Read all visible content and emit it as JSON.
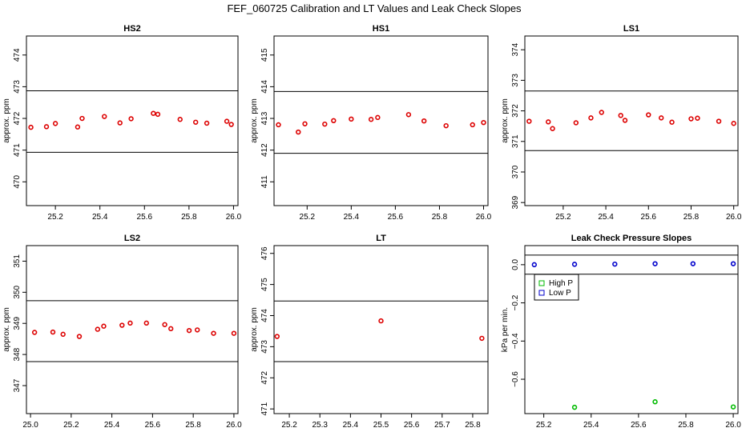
{
  "figure": {
    "title": "FEF_060725  Calibration and LT Values and Leak Check Slopes"
  },
  "chart_data": [
    {
      "id": "hs2",
      "type": "scatter",
      "title": "HS2",
      "ylabel": "approx. ppm",
      "xlim": [
        25.07,
        26.02
      ],
      "ylim": [
        469.25,
        474.6
      ],
      "xticks": [
        25.2,
        25.4,
        25.6,
        25.8,
        26.0
      ],
      "xtick_labels": [
        "25.2",
        "25.4",
        "25.6",
        "25.8",
        "26.0"
      ],
      "yticks": [
        470,
        471,
        472,
        473,
        474
      ],
      "ytick_labels": [
        "470",
        "471",
        "472",
        "473",
        "474"
      ],
      "hlines": [
        472.87,
        470.93
      ],
      "series": [
        {
          "marker": "circle",
          "color": "#dd0000",
          "x": [
            25.09,
            25.16,
            25.2,
            25.3,
            25.32,
            25.42,
            25.49,
            25.54,
            25.64,
            25.66,
            25.76,
            25.83,
            25.88,
            25.97,
            25.99
          ],
          "y": [
            471.72,
            471.74,
            471.84,
            471.73,
            472.0,
            472.06,
            471.86,
            471.99,
            472.16,
            472.13,
            471.97,
            471.88,
            471.85,
            471.91,
            471.81
          ]
        }
      ]
    },
    {
      "id": "hs1",
      "type": "scatter",
      "title": "HS1",
      "ylabel": "approx. ppm",
      "xlim": [
        25.05,
        26.02
      ],
      "ylim": [
        410.25,
        415.6
      ],
      "xticks": [
        25.2,
        25.4,
        25.6,
        25.8,
        26.0
      ],
      "xtick_labels": [
        "25.2",
        "25.4",
        "25.6",
        "25.8",
        "26.0"
      ],
      "yticks": [
        411,
        412,
        413,
        414,
        415
      ],
      "ytick_labels": [
        "411",
        "412",
        "413",
        "414",
        "415"
      ],
      "hlines": [
        413.85,
        411.9
      ],
      "series": [
        {
          "marker": "circle",
          "color": "#dd0000",
          "x": [
            25.07,
            25.16,
            25.19,
            25.28,
            25.32,
            25.4,
            25.49,
            25.52,
            25.66,
            25.73,
            25.83,
            25.95,
            26.0
          ],
          "y": [
            412.8,
            412.57,
            412.83,
            412.82,
            412.93,
            412.98,
            412.97,
            413.03,
            413.12,
            412.92,
            412.77,
            412.8,
            412.87
          ]
        }
      ]
    },
    {
      "id": "ls1",
      "type": "scatter",
      "title": "LS1",
      "ylabel": "approx. ppm",
      "xlim": [
        25.02,
        26.02
      ],
      "ylim": [
        368.9,
        374.45
      ],
      "xticks": [
        25.2,
        25.4,
        25.6,
        25.8,
        26.0
      ],
      "xtick_labels": [
        "25.2",
        "25.4",
        "25.6",
        "25.8",
        "26.0"
      ],
      "yticks": [
        369,
        370,
        371,
        372,
        373,
        374
      ],
      "ytick_labels": [
        "369",
        "370",
        "371",
        "372",
        "373",
        "374"
      ],
      "hlines": [
        372.65,
        370.7
      ],
      "series": [
        {
          "marker": "circle",
          "color": "#dd0000",
          "x": [
            25.04,
            25.13,
            25.15,
            25.26,
            25.33,
            25.38,
            25.47,
            25.49,
            25.6,
            25.66,
            25.71,
            25.8,
            25.83,
            25.93,
            26.0
          ],
          "y": [
            371.66,
            371.64,
            371.42,
            371.61,
            371.77,
            371.95,
            371.85,
            371.69,
            371.87,
            371.77,
            371.63,
            371.74,
            371.76,
            371.66,
            371.59
          ]
        }
      ]
    },
    {
      "id": "ls2",
      "type": "scatter",
      "title": "LS2",
      "ylabel": "approx. ppm",
      "xlim": [
        24.98,
        26.02
      ],
      "ylim": [
        346.1,
        351.5
      ],
      "xticks": [
        25.0,
        25.2,
        25.4,
        25.6,
        25.8,
        26.0
      ],
      "xtick_labels": [
        "25.0",
        "25.2",
        "25.4",
        "25.6",
        "25.8",
        "26.0"
      ],
      "yticks": [
        347,
        348,
        349,
        350,
        351
      ],
      "ytick_labels": [
        "347",
        "348",
        "349",
        "350",
        "351"
      ],
      "hlines": [
        349.73,
        347.77
      ],
      "series": [
        {
          "marker": "circle",
          "color": "#dd0000",
          "x": [
            25.02,
            25.11,
            25.16,
            25.24,
            25.33,
            25.36,
            25.45,
            25.49,
            25.57,
            25.66,
            25.69,
            25.78,
            25.82,
            25.9,
            26.0
          ],
          "y": [
            348.71,
            348.72,
            348.65,
            348.58,
            348.81,
            348.91,
            348.94,
            349.01,
            349.01,
            348.96,
            348.83,
            348.77,
            348.79,
            348.68,
            348.68
          ]
        }
      ]
    },
    {
      "id": "lt",
      "type": "scatter",
      "title": "LT",
      "ylabel": "approx. ppm",
      "xlim": [
        25.15,
        25.85
      ],
      "ylim": [
        470.85,
        476.25
      ],
      "xticks": [
        25.2,
        25.3,
        25.4,
        25.5,
        25.6,
        25.7,
        25.8
      ],
      "xtick_labels": [
        "25.2",
        "25.3",
        "25.4",
        "25.5",
        "25.6",
        "25.7",
        "25.8"
      ],
      "yticks": [
        471,
        472,
        473,
        474,
        475,
        476
      ],
      "ytick_labels": [
        "471",
        "472",
        "473",
        "474",
        "475",
        "476"
      ],
      "hlines": [
        474.47,
        472.52
      ],
      "series": [
        {
          "marker": "circle",
          "color": "#dd0000",
          "x": [
            25.16,
            25.5,
            25.83
          ],
          "y": [
            473.33,
            473.83,
            473.27
          ]
        }
      ]
    },
    {
      "id": "leak",
      "type": "scatter",
      "title": "Leak Check Pressure Slopes",
      "ylabel": "kPa per min.",
      "xlim": [
        25.12,
        26.02
      ],
      "ylim": [
        -0.78,
        0.1
      ],
      "xticks": [
        25.2,
        25.4,
        25.6,
        25.8,
        26.0
      ],
      "xtick_labels": [
        "25.2",
        "25.4",
        "25.6",
        "25.8",
        "26.0"
      ],
      "yticks": [
        0.0,
        -0.2,
        -0.4,
        -0.6
      ],
      "ytick_labels": [
        "0.0",
        "−0.2",
        "−0.4",
        "−0.6"
      ],
      "hlines": [
        0.05,
        -0.05
      ],
      "legend": {
        "position": "top-left",
        "entries": [
          {
            "label": "High P",
            "color": "#00bb00"
          },
          {
            "label": "Low P",
            "color": "#0000cc"
          }
        ]
      },
      "series": [
        {
          "name": "High P",
          "marker": "circle",
          "color": "#00bb00",
          "x": [
            25.33,
            25.67,
            26.0
          ],
          "y": [
            -0.747,
            -0.718,
            -0.745
          ]
        },
        {
          "name": "Low P",
          "marker": "circle",
          "color": "#0000cc",
          "x": [
            25.16,
            25.33,
            25.5,
            25.67,
            25.83,
            26.0
          ],
          "y": [
            0.0,
            0.002,
            0.003,
            0.005,
            0.005,
            0.005
          ]
        }
      ]
    }
  ]
}
